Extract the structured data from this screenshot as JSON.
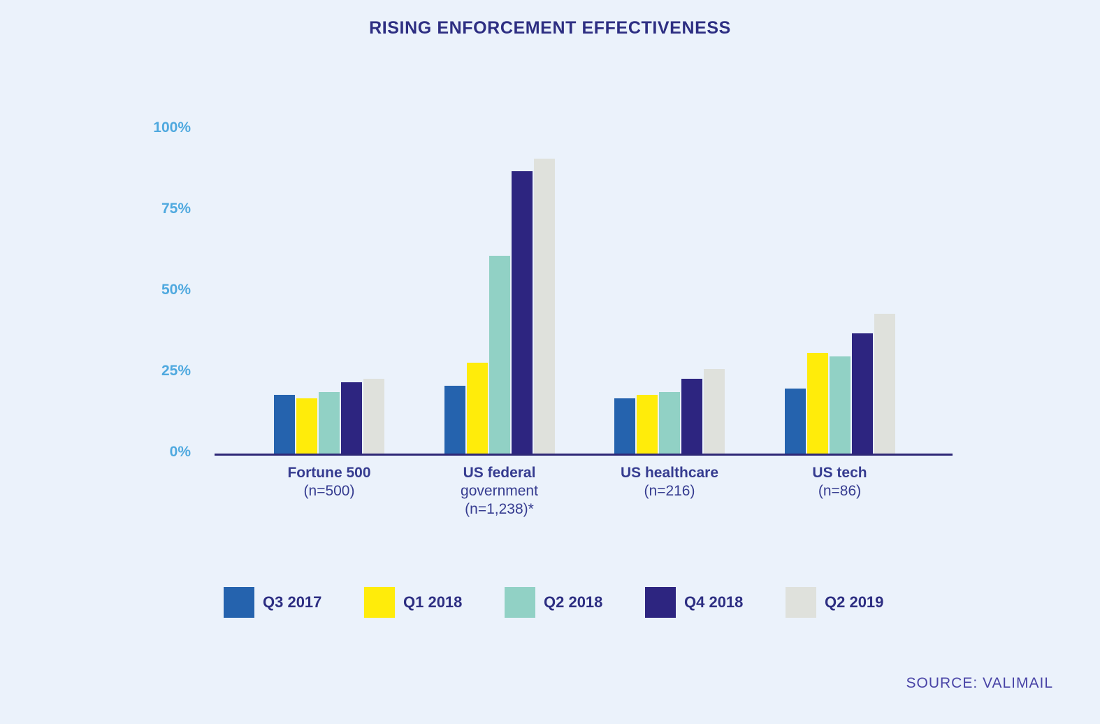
{
  "title": "RISING ENFORCEMENT EFFECTIVENESS",
  "source": "SOURCE: VALIMAIL",
  "colors": {
    "background": "#EBF2FB",
    "title_text": "#2D2E82",
    "axis_line": "#2E2876",
    "y_tick_text": "#4FA9DF",
    "category_text": "#363C90",
    "legend_text": "#2D2E82",
    "source_text": "#4944A6"
  },
  "chart_data": {
    "type": "bar",
    "title": "RISING ENFORCEMENT EFFECTIVENESS",
    "xlabel": "",
    "ylabel": "",
    "unit": "percent",
    "ylim": [
      0,
      100
    ],
    "y_ticks": [
      "0%",
      "25%",
      "50%",
      "75%",
      "100%"
    ],
    "grid": false,
    "legend_position": "bottom",
    "categories": [
      "Fortune 500 (n=500)",
      "US federal government (n=1,238)*",
      "US healthcare (n=216)",
      "US tech (n=86)"
    ],
    "category_label_lines": [
      [
        "Fortune 500",
        "(n=500)"
      ],
      [
        "US federal",
        "government",
        "(n=1,238)*"
      ],
      [
        "US healthcare",
        "(n=216)"
      ],
      [
        "US tech",
        "(n=86)"
      ]
    ],
    "series": [
      {
        "name": "Q3 2017",
        "color": "#2563AE",
        "values": [
          18,
          21,
          17,
          20
        ]
      },
      {
        "name": "Q1 2018",
        "color": "#FFEC0A",
        "values": [
          17,
          28,
          18,
          31
        ]
      },
      {
        "name": "Q2 2018",
        "color": "#91D1C5",
        "values": [
          19,
          61,
          19,
          30
        ]
      },
      {
        "name": "Q4 2018",
        "color": "#2D2580",
        "values": [
          22,
          87,
          23,
          37
        ]
      },
      {
        "name": "Q2 2019",
        "color": "#DFE1DC",
        "values": [
          23,
          91,
          26,
          43
        ]
      }
    ]
  }
}
